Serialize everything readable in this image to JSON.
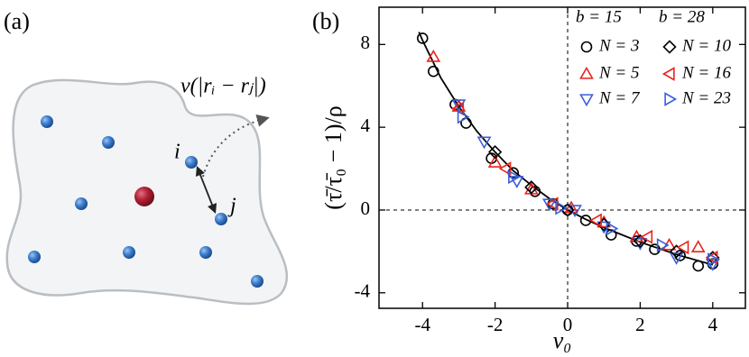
{
  "panel_a": {
    "label": "(a)",
    "node_i": "i",
    "node_j": "j",
    "potential": "v(|rᵢ − rⱼ|)"
  },
  "chart_data": {
    "type": "scatter",
    "panel_label": "(b)",
    "xlabel": "v₀",
    "ylabel": "(τ̄/τ̄₀ − 1)/ρ",
    "xlim": [
      -5.2,
      4.9
    ],
    "ylim": [
      -4.75,
      9.8
    ],
    "xticks": [
      -4,
      -2,
      0,
      2,
      4
    ],
    "yticks": [
      -4,
      0,
      4,
      8
    ],
    "zero_lines": true,
    "legend_groups": [
      "b = 15",
      "b = 28"
    ],
    "series": [
      {
        "name": "N = 3",
        "group": 0,
        "marker": "circle",
        "color": "#000000",
        "x": [
          -4.0,
          -3.7,
          -3.1,
          -2.8,
          -2.1,
          -1.5,
          -0.9,
          -0.4,
          0,
          0.5,
          1.2,
          1.9,
          2.4,
          3.1,
          3.6,
          4.0
        ],
        "values": [
          8.3,
          6.7,
          5.1,
          4.2,
          2.5,
          1.8,
          0.9,
          0.3,
          0,
          -0.5,
          -1.2,
          -1.5,
          -1.9,
          -2.2,
          -2.7,
          -2.6
        ]
      },
      {
        "name": "N = 5",
        "group": 0,
        "marker": "triangle-up",
        "color": "#e8241c",
        "x": [
          -3.7,
          -3.0,
          -2.0,
          -1.0,
          0.1,
          1.0,
          1.9,
          2.8,
          3.6
        ],
        "values": [
          7.4,
          5.0,
          2.3,
          1.0,
          0.1,
          -0.6,
          -1.3,
          -1.7,
          -1.8
        ]
      },
      {
        "name": "N = 7",
        "group": 0,
        "marker": "triangle-down",
        "color": "#3a5fd9",
        "x": [
          -3.0,
          -2.3,
          -1.4,
          -0.5,
          0.2,
          1.0,
          2.0,
          3.0,
          4.0
        ],
        "values": [
          5.1,
          3.3,
          1.4,
          0.3,
          0,
          -0.8,
          -1.6,
          -2.3,
          -2.6
        ]
      },
      {
        "name": "N = 10",
        "group": 1,
        "marker": "diamond",
        "color": "#000000",
        "x": [
          -2.0,
          -1.0,
          0,
          1.0,
          2.0,
          3.0,
          4.0
        ],
        "values": [
          2.8,
          1.1,
          0,
          -0.7,
          -1.5,
          -2.0,
          -2.3
        ]
      },
      {
        "name": "N = 16",
        "group": 1,
        "marker": "triangle-left",
        "color": "#e8241c",
        "x": [
          -3.0,
          -1.7,
          -0.4,
          0.8,
          2.2,
          3.2,
          4.0
        ],
        "values": [
          4.9,
          2.0,
          0.3,
          -0.5,
          -1.3,
          -1.8,
          -2.3
        ]
      },
      {
        "name": "N = 23",
        "group": 1,
        "marker": "triangle-right",
        "color": "#3a5fd9",
        "x": [
          -2.9,
          -1.5,
          -0.2,
          1.2,
          2.6,
          4.0
        ],
        "values": [
          4.5,
          1.6,
          0.1,
          -0.9,
          -1.7,
          -2.4
        ]
      }
    ],
    "fit": {
      "color": "#000000",
      "x": [
        -4.1,
        -4,
        -3.5,
        -3,
        -2.5,
        -2,
        -1.5,
        -1,
        -0.5,
        0,
        0.5,
        1,
        1.5,
        2,
        2.5,
        3,
        3.5,
        4
      ],
      "values": [
        8.6,
        8.2,
        6.4,
        5.0,
        3.8,
        2.8,
        1.9,
        1.2,
        0.55,
        0,
        -0.45,
        -0.85,
        -1.2,
        -1.55,
        -1.85,
        -2.15,
        -2.4,
        -2.65
      ]
    }
  }
}
